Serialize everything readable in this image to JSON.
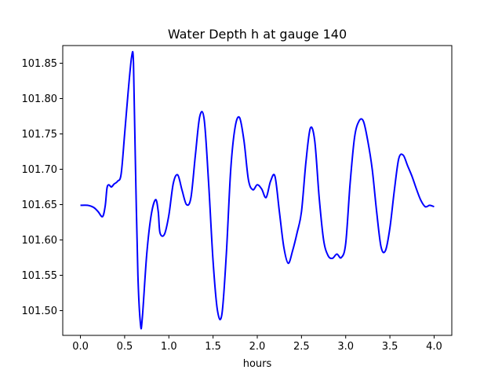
{
  "chart_data": {
    "type": "line",
    "title": "Water Depth h at gauge 140",
    "xlabel": "hours",
    "ylabel": "",
    "xlim": [
      -0.2,
      4.2
    ],
    "ylim": [
      101.465,
      101.875
    ],
    "xticks": [
      0.0,
      0.5,
      1.0,
      1.5,
      2.0,
      2.5,
      3.0,
      3.5,
      4.0
    ],
    "xtick_labels": [
      "0.0",
      "0.5",
      "1.0",
      "1.5",
      "2.0",
      "2.5",
      "3.0",
      "3.5",
      "4.0"
    ],
    "yticks": [
      101.5,
      101.55,
      101.6,
      101.65,
      101.7,
      101.75,
      101.8,
      101.85
    ],
    "ytick_labels": [
      "101.50",
      "101.55",
      "101.60",
      "101.65",
      "101.70",
      "101.75",
      "101.80",
      "101.85"
    ],
    "grid": false,
    "series": [
      {
        "color": "#0000ff",
        "x": [
          0.0,
          0.08,
          0.15,
          0.2,
          0.25,
          0.28,
          0.3,
          0.32,
          0.35,
          0.38,
          0.42,
          0.46,
          0.5,
          0.54,
          0.58,
          0.6,
          0.62,
          0.65,
          0.68,
          0.7,
          0.75,
          0.8,
          0.85,
          0.88,
          0.9,
          0.95,
          1.0,
          1.05,
          1.1,
          1.15,
          1.2,
          1.25,
          1.3,
          1.35,
          1.4,
          1.45,
          1.5,
          1.55,
          1.6,
          1.65,
          1.7,
          1.75,
          1.8,
          1.85,
          1.9,
          1.95,
          2.0,
          2.05,
          2.1,
          2.15,
          2.2,
          2.25,
          2.3,
          2.35,
          2.4,
          2.45,
          2.5,
          2.55,
          2.6,
          2.65,
          2.7,
          2.75,
          2.8,
          2.85,
          2.9,
          2.95,
          3.0,
          3.05,
          3.1,
          3.15,
          3.2,
          3.25,
          3.3,
          3.35,
          3.4,
          3.45,
          3.5,
          3.55,
          3.6,
          3.65,
          3.7,
          3.75,
          3.8,
          3.85,
          3.9,
          3.95,
          4.0
        ],
        "y": [
          101.649,
          101.649,
          101.646,
          101.64,
          101.633,
          101.648,
          101.673,
          101.678,
          101.675,
          101.679,
          101.683,
          101.693,
          101.75,
          101.81,
          101.86,
          101.85,
          101.72,
          101.55,
          101.48,
          101.49,
          101.58,
          101.635,
          101.657,
          101.64,
          101.61,
          101.608,
          101.635,
          101.68,
          101.692,
          101.67,
          101.65,
          101.66,
          101.72,
          101.775,
          101.77,
          101.68,
          101.57,
          101.5,
          101.495,
          101.58,
          101.7,
          101.76,
          101.773,
          101.74,
          101.685,
          101.671,
          101.678,
          101.672,
          101.66,
          101.683,
          101.69,
          101.64,
          101.59,
          101.567,
          101.585,
          101.61,
          101.64,
          101.71,
          101.758,
          101.74,
          101.66,
          101.6,
          101.578,
          101.574,
          101.58,
          101.575,
          101.595,
          101.68,
          101.745,
          101.768,
          101.768,
          101.74,
          101.7,
          101.64,
          101.59,
          101.585,
          101.617,
          101.67,
          101.715,
          101.72,
          101.705,
          101.69,
          101.672,
          101.656,
          101.647,
          101.649,
          101.647
        ]
      }
    ]
  }
}
